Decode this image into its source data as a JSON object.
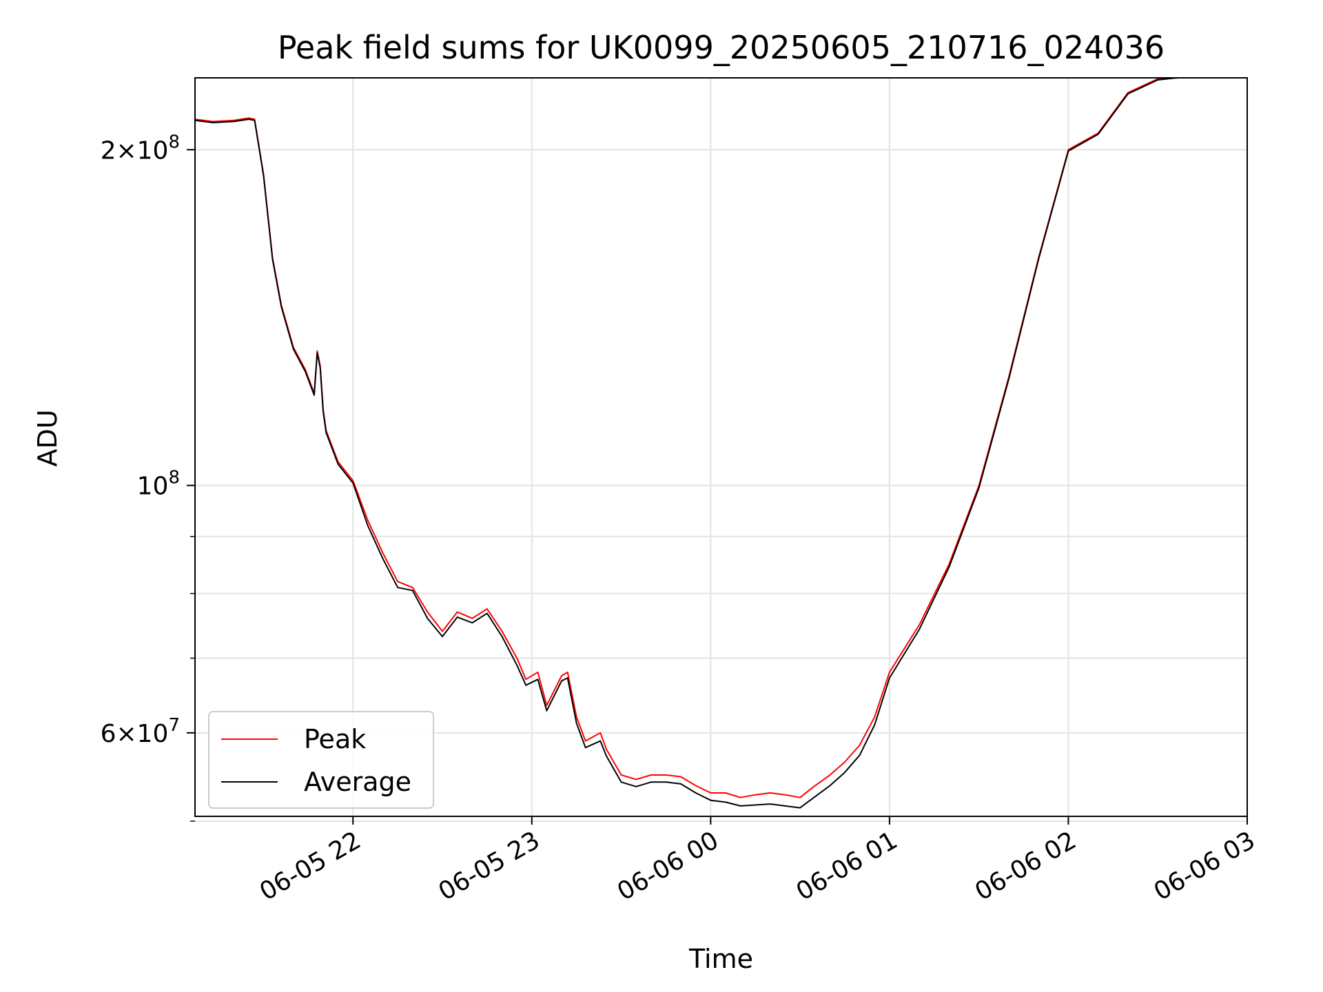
{
  "chart_data": {
    "type": "line",
    "title": "Peak field sums for UK0099_20250605_210716_024036",
    "xlabel": "Time",
    "ylabel": "ADU",
    "yscale": "log",
    "xlim": [
      "2025-06-05 21:07",
      "2025-06-06 03:00"
    ],
    "ylim": [
      50500000,
      232000000
    ],
    "grid": true,
    "legend_position": "lower-left",
    "x_ticks": [
      {
        "t": "2025-06-05 22:00",
        "label": "06-05 22"
      },
      {
        "t": "2025-06-05 23:00",
        "label": "06-05 23"
      },
      {
        "t": "2025-06-06 00:00",
        "label": "06-06 00"
      },
      {
        "t": "2025-06-06 01:00",
        "label": "06-06 01"
      },
      {
        "t": "2025-06-06 02:00",
        "label": "06-06 02"
      },
      {
        "t": "2025-06-06 03:00",
        "label": "06-06 03"
      }
    ],
    "y_ticks_major": [
      {
        "value": 60000000,
        "base": "6",
        "exp": "7",
        "mult": true
      },
      {
        "value": 100000000,
        "base": "10",
        "exp": "8",
        "mult": false
      },
      {
        "value": 200000000,
        "base": "2",
        "exp": "8",
        "mult": true
      }
    ],
    "y_ticks_minor": [
      50000000,
      70000000,
      80000000,
      90000000
    ],
    "series": [
      {
        "name": "Peak",
        "color": "#ff0000",
        "x": [
          "2025-06-05 21:07",
          "2025-06-05 21:13",
          "2025-06-05 21:20",
          "2025-06-05 21:25",
          "2025-06-05 21:27",
          "2025-06-05 21:30",
          "2025-06-05 21:33",
          "2025-06-05 21:36",
          "2025-06-05 21:40",
          "2025-06-05 21:44",
          "2025-06-05 21:47",
          "2025-06-05 21:48",
          "2025-06-05 21:49",
          "2025-06-05 21:50",
          "2025-06-05 21:51",
          "2025-06-05 21:55",
          "2025-06-05 22:00",
          "2025-06-05 22:05",
          "2025-06-05 22:10",
          "2025-06-05 22:15",
          "2025-06-05 22:20",
          "2025-06-05 22:25",
          "2025-06-05 22:30",
          "2025-06-05 22:35",
          "2025-06-05 22:40",
          "2025-06-05 22:45",
          "2025-06-05 22:50",
          "2025-06-05 22:55",
          "2025-06-05 22:58",
          "2025-06-05 23:02",
          "2025-06-05 23:05",
          "2025-06-05 23:10",
          "2025-06-05 23:12",
          "2025-06-05 23:15",
          "2025-06-05 23:18",
          "2025-06-05 23:23",
          "2025-06-05 23:25",
          "2025-06-05 23:30",
          "2025-06-05 23:35",
          "2025-06-05 23:40",
          "2025-06-05 23:45",
          "2025-06-05 23:50",
          "2025-06-05 23:55",
          "2025-06-06 00:00",
          "2025-06-06 00:05",
          "2025-06-06 00:10",
          "2025-06-06 00:15",
          "2025-06-06 00:20",
          "2025-06-06 00:25",
          "2025-06-06 00:30",
          "2025-06-06 00:35",
          "2025-06-06 00:40",
          "2025-06-06 00:45",
          "2025-06-06 00:50",
          "2025-06-06 00:55",
          "2025-06-06 01:00",
          "2025-06-06 01:10",
          "2025-06-06 01:20",
          "2025-06-06 01:30",
          "2025-06-06 01:40",
          "2025-06-06 01:50",
          "2025-06-06 02:00",
          "2025-06-06 02:10",
          "2025-06-06 02:20",
          "2025-06-06 02:30",
          "2025-06-06 02:35",
          "2025-06-06 02:37",
          "2025-06-06 02:40",
          "2025-06-06 02:45",
          "2025-06-06 02:50",
          "2025-06-06 03:00"
        ],
        "y": [
          213000000,
          212000000,
          212500000,
          213500000,
          213000000,
          190000000,
          160000000,
          145000000,
          133000000,
          127000000,
          121000000,
          132000000,
          128000000,
          117000000,
          112000000,
          105000000,
          101000000,
          93000000,
          87000000,
          82000000,
          81000000,
          77000000,
          74000000,
          77000000,
          76000000,
          77500000,
          74000000,
          70000000,
          67000000,
          68000000,
          63500000,
          67500000,
          68000000,
          62000000,
          59000000,
          60000000,
          58000000,
          55000000,
          54500000,
          55000000,
          55000000,
          54800000,
          53800000,
          53000000,
          53000000,
          52500000,
          52800000,
          53000000,
          52800000,
          52500000,
          53800000,
          55000000,
          56500000,
          58500000,
          62000000,
          68000000,
          75000000,
          85000000,
          100000000,
          125000000,
          160000000,
          200000000,
          207000000,
          225000000,
          231500000,
          232000000,
          232000000,
          232000000,
          232000000,
          232000000,
          232000000
        ]
      },
      {
        "name": "Average",
        "color": "#000000",
        "x": [
          "2025-06-05 21:07",
          "2025-06-05 21:13",
          "2025-06-05 21:20",
          "2025-06-05 21:25",
          "2025-06-05 21:27",
          "2025-06-05 21:30",
          "2025-06-05 21:33",
          "2025-06-05 21:36",
          "2025-06-05 21:40",
          "2025-06-05 21:44",
          "2025-06-05 21:47",
          "2025-06-05 21:48",
          "2025-06-05 21:49",
          "2025-06-05 21:50",
          "2025-06-05 21:51",
          "2025-06-05 21:55",
          "2025-06-05 22:00",
          "2025-06-05 22:05",
          "2025-06-05 22:10",
          "2025-06-05 22:15",
          "2025-06-05 22:20",
          "2025-06-05 22:25",
          "2025-06-05 22:30",
          "2025-06-05 22:35",
          "2025-06-05 22:40",
          "2025-06-05 22:45",
          "2025-06-05 22:50",
          "2025-06-05 22:55",
          "2025-06-05 22:58",
          "2025-06-05 23:02",
          "2025-06-05 23:05",
          "2025-06-05 23:10",
          "2025-06-05 23:12",
          "2025-06-05 23:15",
          "2025-06-05 23:18",
          "2025-06-05 23:23",
          "2025-06-05 23:25",
          "2025-06-05 23:30",
          "2025-06-05 23:35",
          "2025-06-05 23:40",
          "2025-06-05 23:45",
          "2025-06-05 23:50",
          "2025-06-05 23:55",
          "2025-06-06 00:00",
          "2025-06-06 00:05",
          "2025-06-06 00:10",
          "2025-06-06 00:15",
          "2025-06-06 00:20",
          "2025-06-06 00:25",
          "2025-06-06 00:30",
          "2025-06-06 00:35",
          "2025-06-06 00:40",
          "2025-06-06 00:45",
          "2025-06-06 00:50",
          "2025-06-06 00:55",
          "2025-06-06 01:00",
          "2025-06-06 01:10",
          "2025-06-06 01:20",
          "2025-06-06 01:30",
          "2025-06-06 01:40",
          "2025-06-06 01:50",
          "2025-06-06 02:00",
          "2025-06-06 02:10",
          "2025-06-06 02:20",
          "2025-06-06 02:30",
          "2025-06-06 02:35",
          "2025-06-06 02:37",
          "2025-06-06 02:40",
          "2025-06-06 02:45",
          "2025-06-06 02:50",
          "2025-06-06 03:00"
        ],
        "y": [
          212500000,
          211500000,
          212000000,
          213000000,
          212500000,
          189500000,
          159500000,
          144500000,
          132500000,
          126500000,
          120500000,
          131500000,
          127500000,
          116500000,
          111500000,
          104500000,
          100500000,
          92000000,
          86000000,
          81000000,
          80500000,
          76000000,
          73200000,
          76200000,
          75300000,
          76800000,
          73200000,
          69000000,
          66200000,
          67000000,
          62800000,
          66800000,
          67200000,
          61200000,
          58200000,
          59000000,
          57200000,
          54200000,
          53700000,
          54200000,
          54200000,
          54000000,
          53000000,
          52200000,
          52000000,
          51600000,
          51700000,
          51800000,
          51600000,
          51400000,
          52600000,
          53800000,
          55300000,
          57300000,
          61000000,
          67200000,
          74300000,
          84500000,
          99500000,
          124500000,
          159500000,
          199500000,
          206500000,
          224500000,
          231000000,
          231800000,
          232000000,
          232000000,
          232000000,
          232000000,
          232000000
        ]
      }
    ]
  }
}
